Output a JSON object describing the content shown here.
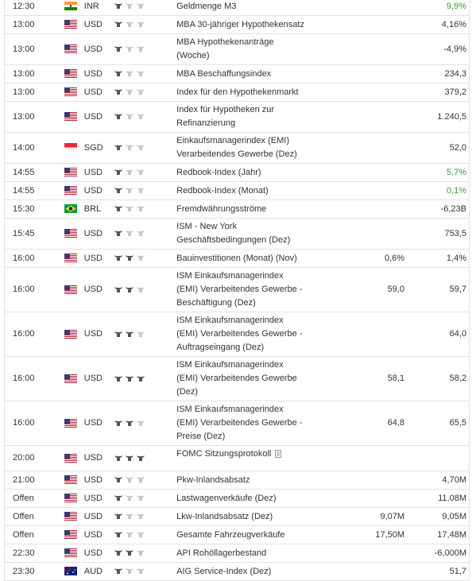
{
  "calendar": {
    "rows": [
      {
        "time": "12:30",
        "currency": "INR",
        "importance": 1,
        "event": [
          "Geldmenge M3"
        ],
        "forecast": "",
        "previous": "9,9%",
        "previous_color": "#3c9a3c"
      },
      {
        "time": "13:00",
        "currency": "USD",
        "importance": 1,
        "event": [
          "MBA 30-jähriger Hypothekensatz"
        ],
        "forecast": "",
        "previous": "4,16%"
      },
      {
        "time": "13:00",
        "currency": "USD",
        "importance": 1,
        "event": [
          "MBA Hypothekenanträge",
          "(Woche)"
        ],
        "forecast": "",
        "previous": "-4,9%"
      },
      {
        "time": "13:00",
        "currency": "USD",
        "importance": 1,
        "event": [
          "MBA Beschaffungsindex"
        ],
        "forecast": "",
        "previous": "234,3"
      },
      {
        "time": "13:00",
        "currency": "USD",
        "importance": 1,
        "event": [
          "Index für den Hypothekenmarkt"
        ],
        "forecast": "",
        "previous": "379,2"
      },
      {
        "time": "13:00",
        "currency": "USD",
        "importance": 1,
        "event": [
          "Index für Hypotheken zur",
          "Refinanzierung"
        ],
        "forecast": "",
        "previous": "1.240,5"
      },
      {
        "time": "14:00",
        "currency": "SGD",
        "importance": 1,
        "event": [
          "Einkaufsmanagerindex (EMI)",
          "Verarbeitendes Gewerbe (Dez)"
        ],
        "forecast": "",
        "previous": "52,0"
      },
      {
        "time": "14:55",
        "currency": "USD",
        "importance": 1,
        "event": [
          "Redbook-Index (Jahr)"
        ],
        "forecast": "",
        "previous": "5,7%",
        "previous_color": "#3c9a3c"
      },
      {
        "time": "14:55",
        "currency": "USD",
        "importance": 1,
        "event": [
          "Redbook-Index (Monat)"
        ],
        "forecast": "",
        "previous": "0,1%",
        "previous_color": "#3c9a3c"
      },
      {
        "time": "15:30",
        "currency": "BRL",
        "importance": 1,
        "event": [
          "Fremdwährungsströme"
        ],
        "forecast": "",
        "previous": "-6,23B"
      },
      {
        "time": "15:45",
        "currency": "USD",
        "importance": 1,
        "event": [
          "ISM - New York",
          "Geschäftsbedingungen (Dez)"
        ],
        "forecast": "",
        "previous": "753,5"
      },
      {
        "time": "16:00",
        "currency": "USD",
        "importance": 2,
        "event": [
          "Bauinvestitionen (Monat) (Nov)"
        ],
        "forecast": "0,6%",
        "previous": "1,4%"
      },
      {
        "time": "16:00",
        "currency": "USD",
        "importance": 2,
        "event": [
          "ISM Einkaufsmanagerindex",
          "(EMI) Verarbeitendes Gewerbe -",
          "Beschäftigung (Dez)"
        ],
        "forecast": "59,0",
        "previous": "59,7"
      },
      {
        "time": "16:00",
        "currency": "USD",
        "importance": 2,
        "event": [
          "ISM Einkaufsmanagerindex",
          "(EMI) Verarbeitendes Gewerbe -",
          "Auftragseingang (Dez)"
        ],
        "forecast": "",
        "previous": "64,0"
      },
      {
        "time": "16:00",
        "currency": "USD",
        "importance": 3,
        "event": [
          "ISM Einkaufsmanagerindex",
          "(EMI) Verarbeitendes Gewerbe",
          "(Dez)"
        ],
        "forecast": "58,1",
        "previous": "58,2"
      },
      {
        "time": "16:00",
        "currency": "USD",
        "importance": 2,
        "event": [
          "ISM Einkaufsmanagerindex",
          "(EMI) Verarbeitendes Gewerbe -",
          "Preise (Dez)"
        ],
        "forecast": "64,8",
        "previous": "65,5"
      },
      {
        "time": "20:00",
        "currency": "USD",
        "importance": 3,
        "event": [
          "FOMC Sitzungsprotokoll"
        ],
        "forecast": "",
        "previous": ""
      },
      {
        "time": "21:00",
        "currency": "USD",
        "importance": 1,
        "event": [
          "Pkw-Inlandsabsatz"
        ],
        "forecast": "",
        "previous": "4,70M"
      },
      {
        "time": "Offen",
        "currency": "USD",
        "importance": 1,
        "event": [
          "Lastwagenverkäufe (Dez)"
        ],
        "forecast": "",
        "previous": "11,08M"
      },
      {
        "time": "Offen",
        "currency": "USD",
        "importance": 1,
        "event": [
          "Lkw-Inlandsabsatz (Dez)"
        ],
        "forecast": "9,07M",
        "previous": "9,05M"
      },
      {
        "time": "Offen",
        "currency": "USD",
        "importance": 1,
        "event": [
          "Gesamte Fahrzeugverkäufe"
        ],
        "forecast": "17,50M",
        "previous": "17,48M"
      },
      {
        "time": "22:30",
        "currency": "USD",
        "importance": 2,
        "event": [
          "API Rohöllagerbestand"
        ],
        "forecast": "",
        "previous": "-6,000M"
      },
      {
        "time": "23:30",
        "currency": "AUD",
        "importance": 1,
        "event": [
          "AIG Service-Index (Dez)"
        ],
        "forecast": "",
        "previous": "51,7"
      }
    ]
  }
}
